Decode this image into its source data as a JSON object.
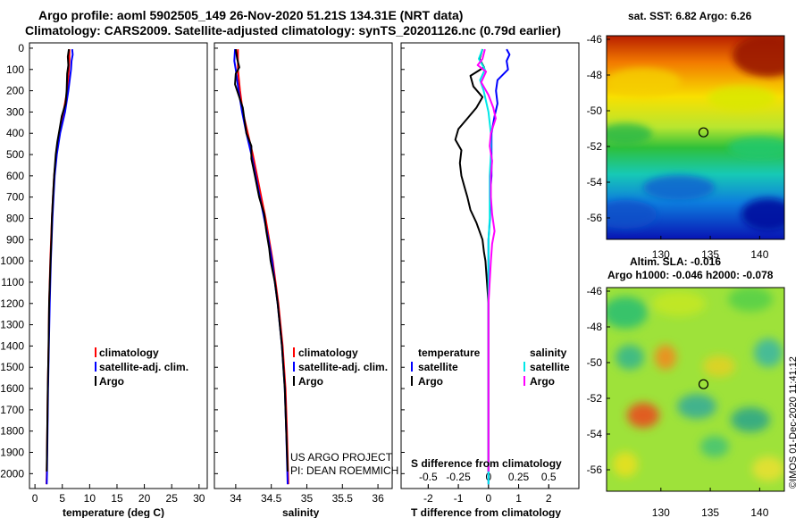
{
  "header": {
    "title_line1": "Argo profile: aoml 5902505_149 26-Nov-2020 51.21S 134.31E (NRT data)",
    "title_line2": "Climatology: CARS2009. Satellite-adjusted climatology: synTS_20201126.nc (0.79d earlier)"
  },
  "credits": {
    "project": "US ARGO PROJECT",
    "pi": "PI: DEAN ROEMMICH",
    "stamp": "©IMOS 01-Dec-2020 11:41:12"
  },
  "colors": {
    "climatology": "#ff0000",
    "satellite": "#0000ff",
    "argo": "#000000",
    "sal_satellite": "#00e8e8",
    "sal_argo": "#ff00ff"
  },
  "chart_data": [
    {
      "type": "line",
      "title": "",
      "xlabel": "temperature (deg C)",
      "ylabel": "depth",
      "xlim": [
        -1,
        31.5
      ],
      "ylim": [
        2070,
        -25
      ],
      "xticks": [
        0,
        5,
        10,
        15,
        20,
        25,
        30
      ],
      "yticks": [
        0,
        100,
        200,
        300,
        400,
        500,
        600,
        700,
        800,
        900,
        1000,
        1100,
        1200,
        1300,
        1400,
        1500,
        1600,
        1700,
        1800,
        1900,
        2000
      ],
      "legend": [
        "climatology",
        "satellite-adj. clim.",
        "Argo"
      ],
      "series": [
        {
          "name": "climatology",
          "depth": [
            5,
            50,
            100,
            200,
            300,
            400,
            500,
            600,
            700,
            800,
            1000,
            1200,
            1400,
            1600,
            1800,
            2000,
            2050
          ],
          "values": [
            6.3,
            6.3,
            6.2,
            5.9,
            5.2,
            4.5,
            3.9,
            3.5,
            3.3,
            3.1,
            2.8,
            2.6,
            2.5,
            2.35,
            2.25,
            2.15,
            2.1
          ]
        },
        {
          "name": "satellite-adj. clim.",
          "depth": [
            5,
            30,
            60,
            100,
            200,
            300,
            400,
            500,
            600,
            700,
            800,
            1000,
            1200,
            1400,
            1600,
            1800,
            2000,
            2050
          ],
          "values": [
            6.8,
            6.9,
            6.7,
            6.6,
            6.1,
            5.5,
            4.6,
            4.0,
            3.6,
            3.4,
            3.2,
            2.9,
            2.7,
            2.55,
            2.4,
            2.3,
            2.2,
            2.15
          ]
        },
        {
          "name": "Argo",
          "depth": [
            5,
            40,
            80,
            120,
            200,
            260,
            320,
            380,
            440,
            500,
            600,
            700,
            800,
            900,
            1000,
            1200,
            1400,
            1600,
            1800,
            1990
          ],
          "values": [
            6.2,
            6.0,
            6.1,
            5.9,
            5.8,
            5.6,
            4.9,
            4.5,
            4.1,
            3.8,
            3.5,
            3.3,
            3.1,
            3.0,
            2.85,
            2.6,
            2.5,
            2.35,
            2.25,
            2.15
          ]
        }
      ]
    },
    {
      "type": "line",
      "title": "",
      "xlabel": "salinity",
      "ylabel": "depth",
      "xlim": [
        33.7,
        36.2
      ],
      "ylim": [
        2070,
        -25
      ],
      "xticks": [
        34,
        34.5,
        35,
        35.5,
        36
      ],
      "legend": [
        "climatology",
        "satellite-adj. clim.",
        "Argo"
      ],
      "series": [
        {
          "name": "climatology",
          "depth": [
            5,
            100,
            200,
            300,
            400,
            500,
            600,
            700,
            800,
            900,
            1000,
            1200,
            1400,
            1600,
            1800,
            2050
          ],
          "values": [
            34.03,
            34.03,
            34.06,
            34.1,
            34.17,
            34.24,
            34.3,
            34.36,
            34.42,
            34.47,
            34.52,
            34.6,
            34.66,
            34.7,
            34.72,
            34.74
          ]
        },
        {
          "name": "satellite-adj. clim.",
          "depth": [
            5,
            60,
            100,
            150,
            200,
            300,
            400,
            500,
            600,
            700,
            800,
            900,
            1000,
            1200,
            1400,
            1600,
            1800,
            2050
          ],
          "values": [
            33.99,
            33.98,
            34.0,
            34.02,
            34.04,
            34.09,
            34.15,
            34.22,
            34.28,
            34.34,
            34.4,
            34.46,
            34.51,
            34.59,
            34.65,
            34.69,
            34.71,
            34.73
          ]
        },
        {
          "name": "Argo",
          "depth": [
            5,
            50,
            90,
            120,
            170,
            220,
            280,
            330,
            400,
            460,
            520,
            600,
            700,
            780,
            860,
            940,
            1000,
            1100,
            1200,
            1400,
            1600,
            1800,
            1990
          ],
          "values": [
            34.0,
            34.02,
            34.05,
            34.0,
            33.99,
            34.04,
            34.1,
            34.12,
            34.15,
            34.22,
            34.22,
            34.27,
            34.33,
            34.4,
            34.43,
            34.47,
            34.49,
            34.55,
            34.59,
            34.65,
            34.69,
            34.71,
            34.73
          ]
        }
      ],
      "annotations": [
        "US ARGO PROJECT",
        "PI: DEAN ROEMMICH"
      ]
    },
    {
      "type": "line",
      "title": "",
      "xlabel": "T difference from climatology",
      "xlabel_top": "S difference from climatology",
      "ylabel": "depth",
      "xlim": [
        -2.9,
        3.0
      ],
      "ylim": [
        2070,
        -25
      ],
      "xticks": [
        -2,
        -1,
        0,
        1,
        2
      ],
      "xticks_top": [
        "-0.5",
        "-0.25",
        "0",
        "0.25",
        "0.5"
      ],
      "legend_groups": {
        "temperature": [
          "satellite",
          "Argo"
        ],
        "salinity": [
          "satellite",
          "Argo"
        ]
      },
      "series": [
        {
          "name": "temperature satellite",
          "depth": [
            5,
            30,
            60,
            100,
            150,
            200,
            260,
            320,
            400,
            500,
            600,
            700,
            800,
            900,
            1000,
            1200,
            1600,
            2000,
            2050
          ],
          "values": [
            0.6,
            0.7,
            0.6,
            0.65,
            0.3,
            0.25,
            0.3,
            0.2,
            0.1,
            0.1,
            0.1,
            0.05,
            0.05,
            0.0,
            0.0,
            0.0,
            0.0,
            0.0,
            0.0
          ]
        },
        {
          "name": "temperature Argo",
          "depth": [
            5,
            50,
            90,
            130,
            180,
            230,
            280,
            330,
            380,
            430,
            480,
            540,
            600,
            650,
            700,
            760,
            820,
            900,
            960,
            1000,
            1200,
            1600,
            1990
          ],
          "values": [
            -0.2,
            -0.3,
            -0.15,
            -0.6,
            -0.5,
            -0.2,
            -0.4,
            -0.7,
            -1.0,
            -1.1,
            -0.9,
            -0.95,
            -0.9,
            -0.8,
            -0.7,
            -0.6,
            -0.4,
            -0.2,
            -0.15,
            -0.1,
            0.0,
            0.0,
            0.0
          ]
        },
        {
          "name": "salinity satellite",
          "depth": [
            5,
            50,
            100,
            150,
            200,
            300,
            400,
            500,
            600,
            700,
            800,
            900,
            1000,
            1200,
            1600,
            2000,
            2050
          ],
          "values": [
            -0.05,
            -0.08,
            -0.03,
            -0.07,
            -0.04,
            0.0,
            0.02,
            0.02,
            0.01,
            0.01,
            0.01,
            0.0,
            0.0,
            0.0,
            0.0,
            0.0,
            0.0
          ]
        },
        {
          "name": "salinity Argo",
          "depth": [
            5,
            50,
            80,
            110,
            160,
            220,
            280,
            330,
            400,
            460,
            530,
            600,
            700,
            780,
            860,
            920,
            1000,
            1200,
            1600,
            1990
          ],
          "values": [
            -0.03,
            -0.05,
            -0.09,
            -0.02,
            -0.06,
            0.0,
            0.04,
            0.06,
            0.02,
            0.01,
            0.03,
            0.02,
            0.02,
            0.03,
            0.05,
            0.03,
            0.02,
            0.0,
            0.0,
            0.0
          ]
        }
      ]
    },
    {
      "type": "heatmap",
      "title": "sat. SST: 6.82 Argo: 6.26",
      "xlabel": "",
      "ylabel": "",
      "xlim": [
        124.5,
        142.5
      ],
      "ylim": [
        -57.2,
        -45.8
      ],
      "xticks": [
        130,
        135,
        140
      ],
      "yticks": [
        -46,
        -48,
        -50,
        -52,
        -54,
        -56
      ],
      "marker": {
        "lon": 134.31,
        "lat": -51.21
      }
    },
    {
      "type": "heatmap",
      "title": "Altim. SLA: -0.016",
      "subtitle": "Argo h1000: -0.046 h2000: -0.078",
      "xlabel": "",
      "ylabel": "",
      "xlim": [
        124.5,
        142.5
      ],
      "ylim": [
        -57.2,
        -45.8
      ],
      "xticks": [
        130,
        135,
        140
      ],
      "yticks": [
        -46,
        -48,
        -50,
        -52,
        -54,
        -56
      ],
      "marker": {
        "lon": 134.31,
        "lat": -51.21
      }
    }
  ]
}
